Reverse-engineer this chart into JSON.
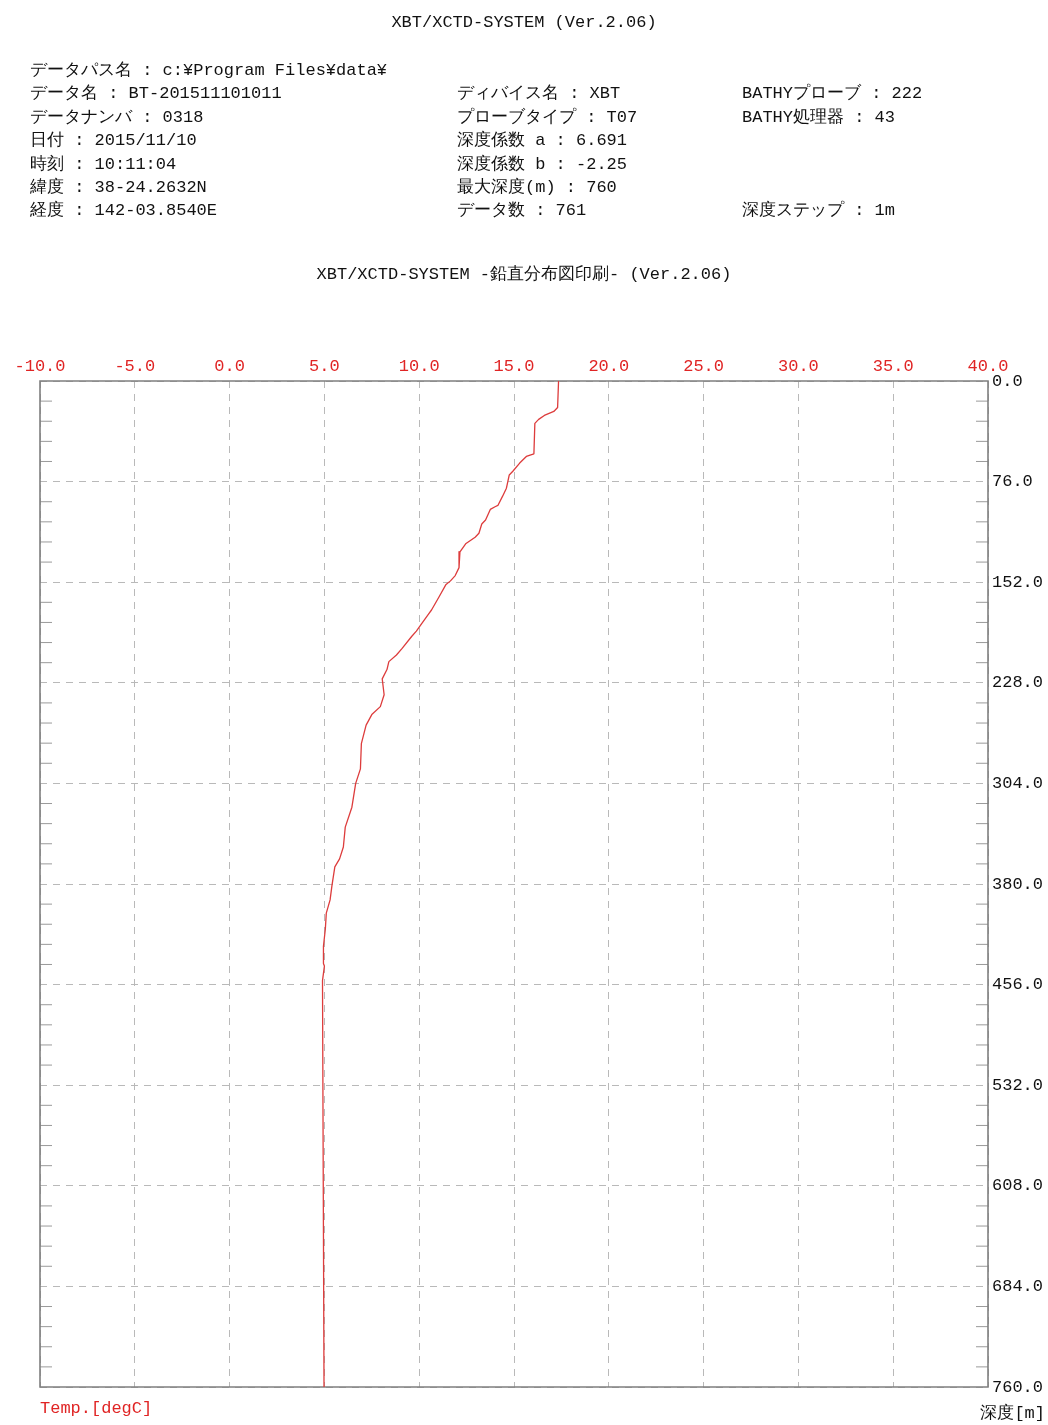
{
  "chart_data": {
    "type": "line",
    "title": "XBT/XCTD-SYSTEM (Ver.2.06)",
    "subtitle": "XBT/XCTD-SYSTEM -鉛直分布図印刷- (Ver.2.06)",
    "annotations": [
      "データパス名 : c:¥Program Files¥data¥",
      "データ名 : BT-201511101011",
      "ディバイス名 : XBT",
      "BATHYプローブ : 222",
      "データナンバ : 0318",
      "プローブタイプ : T07",
      "BATHY処理器 : 43",
      "日付 : 2015/11/10",
      "深度係数 a : 6.691",
      "時刻 : 10:11:04",
      "深度係数 b : -2.25",
      "緯度 : 38-24.2632N",
      "最大深度(m) : 760",
      "経度 : 142-03.8540E",
      "データ数 : 761",
      "深度ステップ : 1m"
    ],
    "xlabel": "Temp.[degC]",
    "ylabel": "深度[m]",
    "x": [
      17.35,
      17.3,
      17.1,
      16.6,
      16.3,
      16.1,
      16.05,
      15.65,
      15.3,
      14.95,
      14.75,
      14.6,
      14.4,
      14.15,
      14.0,
      13.75,
      13.5,
      13.3,
      13.15,
      12.95,
      12.45,
      12.15,
      12.1,
      11.9,
      11.65,
      11.4,
      11.05,
      10.65,
      10.5,
      10.15,
      9.85,
      9.6,
      9.1,
      8.8,
      8.4,
      8.3,
      8.05,
      8.15,
      7.95,
      7.5,
      7.2,
      6.95,
      6.9,
      6.65,
      6.45,
      6.1,
      6.0,
      5.8,
      5.55,
      5.4,
      5.3,
      5.1,
      5.05,
      4.95,
      4.95,
      5.0,
      4.9,
      4.98
    ],
    "values": [
      0,
      20,
      23,
      26,
      29,
      32,
      55,
      57,
      62,
      68,
      71,
      81,
      87,
      94,
      95,
      97,
      105,
      108,
      115,
      118,
      123,
      129,
      141,
      147,
      151,
      154,
      163,
      173,
      176,
      183,
      189,
      193,
      202,
      207,
      212,
      218,
      225,
      237,
      246,
      252,
      260,
      274,
      293,
      304,
      322,
      337,
      352,
      361,
      367,
      381,
      392,
      402,
      414,
      427,
      440,
      442,
      453,
      760
    ],
    "color": "#dd3c3c",
    "xlim": [
      -10,
      40
    ],
    "xticks": [
      {
        "value": -10,
        "label": "-10.0"
      },
      {
        "value": -5,
        "label": "-5.0"
      },
      {
        "value": 0,
        "label": "0.0"
      },
      {
        "value": 5,
        "label": "5.0"
      },
      {
        "value": 10,
        "label": "10.0"
      },
      {
        "value": 15,
        "label": "15.0"
      },
      {
        "value": 20,
        "label": "20.0"
      },
      {
        "value": 25,
        "label": "25.0"
      },
      {
        "value": 30,
        "label": "30.0"
      },
      {
        "value": 35,
        "label": "35.0"
      },
      {
        "value": 40,
        "label": "40.0"
      }
    ],
    "ylim": [
      760,
      0
    ],
    "yticks": [
      {
        "value": 0,
        "label": "0.0"
      },
      {
        "value": 15.2,
        "label": null
      },
      {
        "value": 30.4,
        "label": null
      },
      {
        "value": 45.6,
        "label": null
      },
      {
        "value": 60.8,
        "label": null
      },
      {
        "value": 76,
        "label": "76.0"
      },
      {
        "value": 91.2,
        "label": null
      },
      {
        "value": 106.4,
        "label": null
      },
      {
        "value": 121.6,
        "label": null
      },
      {
        "value": 136.8,
        "label": null
      },
      {
        "value": 152,
        "label": "152.0"
      },
      {
        "value": 167.2,
        "label": null
      },
      {
        "value": 182.4,
        "label": null
      },
      {
        "value": 197.6,
        "label": null
      },
      {
        "value": 212.8,
        "label": null
      },
      {
        "value": 228,
        "label": "228.0"
      },
      {
        "value": 243.2,
        "label": null
      },
      {
        "value": 258.4,
        "label": null
      },
      {
        "value": 273.6,
        "label": null
      },
      {
        "value": 288.8,
        "label": null
      },
      {
        "value": 304,
        "label": "304.0"
      },
      {
        "value": 319.2,
        "label": null
      },
      {
        "value": 334.4,
        "label": null
      },
      {
        "value": 349.6,
        "label": null
      },
      {
        "value": 364.8,
        "label": null
      },
      {
        "value": 380,
        "label": "380.0"
      },
      {
        "value": 395.2,
        "label": null
      },
      {
        "value": 410.4,
        "label": null
      },
      {
        "value": 425.6,
        "label": null
      },
      {
        "value": 440.8,
        "label": null
      },
      {
        "value": 456,
        "label": "456.0"
      },
      {
        "value": 471.2,
        "label": null
      },
      {
        "value": 486.4,
        "label": null
      },
      {
        "value": 501.6,
        "label": null
      },
      {
        "value": 516.8,
        "label": null
      },
      {
        "value": 532,
        "label": "532.0"
      },
      {
        "value": 547.2,
        "label": null
      },
      {
        "value": 562.4,
        "label": null
      },
      {
        "value": 577.6,
        "label": null
      },
      {
        "value": 592.8,
        "label": null
      },
      {
        "value": 608,
        "label": "608.0"
      },
      {
        "value": 623.2,
        "label": null
      },
      {
        "value": 638.4,
        "label": null
      },
      {
        "value": 653.6,
        "label": null
      },
      {
        "value": 668.8,
        "label": null
      },
      {
        "value": 684,
        "label": "684.0"
      },
      {
        "value": 699.2,
        "label": null
      },
      {
        "value": 714.4,
        "label": null
      },
      {
        "value": 729.6,
        "label": null
      },
      {
        "value": 744.8,
        "label": null
      },
      {
        "value": 760,
        "label": "760.0"
      }
    ],
    "grid": true
  }
}
